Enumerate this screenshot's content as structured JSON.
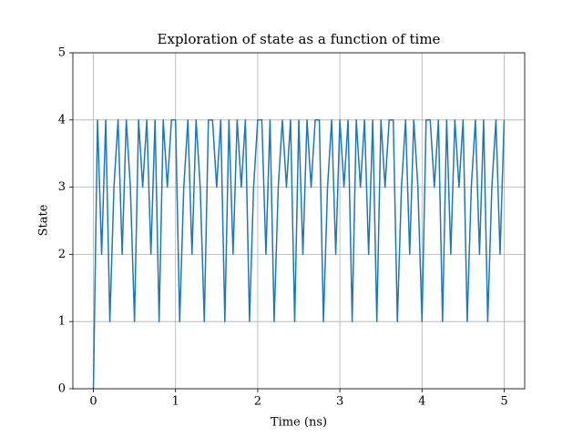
{
  "chart_data": {
    "type": "line",
    "title": "Exploration of state as a function of time",
    "xlabel": "Time (ns)",
    "ylabel": "State",
    "x": [
      0,
      0.05,
      0.1,
      0.15,
      0.2,
      0.25,
      0.3,
      0.35,
      0.4,
      0.45,
      0.5,
      0.55,
      0.6,
      0.65,
      0.7,
      0.75,
      0.8,
      0.85,
      0.9,
      0.95,
      1,
      1.05,
      1.1,
      1.15,
      1.2,
      1.25,
      1.3,
      1.35,
      1.4,
      1.45,
      1.5,
      1.55,
      1.6,
      1.65,
      1.7,
      1.75,
      1.8,
      1.85,
      1.9,
      1.95,
      2,
      2.05,
      2.1,
      2.15,
      2.2,
      2.25,
      2.3,
      2.35,
      2.4,
      2.45,
      2.5,
      2.55,
      2.6,
      2.65,
      2.7,
      2.75,
      2.8,
      2.85,
      2.9,
      2.95,
      3,
      3.05,
      3.1,
      3.15,
      3.2,
      3.25,
      3.3,
      3.35,
      3.4,
      3.45,
      3.5,
      3.55,
      3.6,
      3.65,
      3.7,
      3.75,
      3.8,
      3.85,
      3.9,
      3.95,
      4,
      4.05,
      4.1,
      4.15,
      4.2,
      4.25,
      4.3,
      4.35,
      4.4,
      4.45,
      4.5,
      4.55,
      4.6,
      4.65,
      4.7,
      4.75,
      4.8,
      4.85,
      4.9,
      4.95,
      5
    ],
    "values": [
      0,
      4,
      2,
      4,
      1,
      3,
      4,
      2,
      4,
      3,
      1,
      4,
      3,
      4,
      2,
      4,
      1,
      4,
      3,
      4,
      4,
      1,
      3,
      4,
      2,
      4,
      3,
      1,
      4,
      4,
      3,
      4,
      1,
      4,
      2,
      4,
      3,
      4,
      1,
      3,
      4,
      4,
      2,
      4,
      1,
      3,
      4,
      3,
      4,
      1,
      4,
      2,
      4,
      3,
      4,
      4,
      1,
      3,
      4,
      2,
      4,
      3,
      4,
      1,
      4,
      3,
      4,
      2,
      4,
      1,
      4,
      3,
      4,
      4,
      1,
      3,
      4,
      2,
      4,
      3,
      1,
      4,
      4,
      3,
      4,
      1,
      4,
      2,
      4,
      3,
      4,
      1,
      3,
      4,
      2,
      4,
      1,
      3,
      4,
      2,
      4
    ],
    "color": "#1f77b4",
    "xlim": [
      -0.25,
      5.25
    ],
    "xticks": [
      0,
      1,
      2,
      3,
      4,
      5
    ],
    "ylim": [
      0,
      5
    ],
    "yticks": [
      0,
      1,
      2,
      3,
      4,
      5
    ],
    "grid": true
  }
}
